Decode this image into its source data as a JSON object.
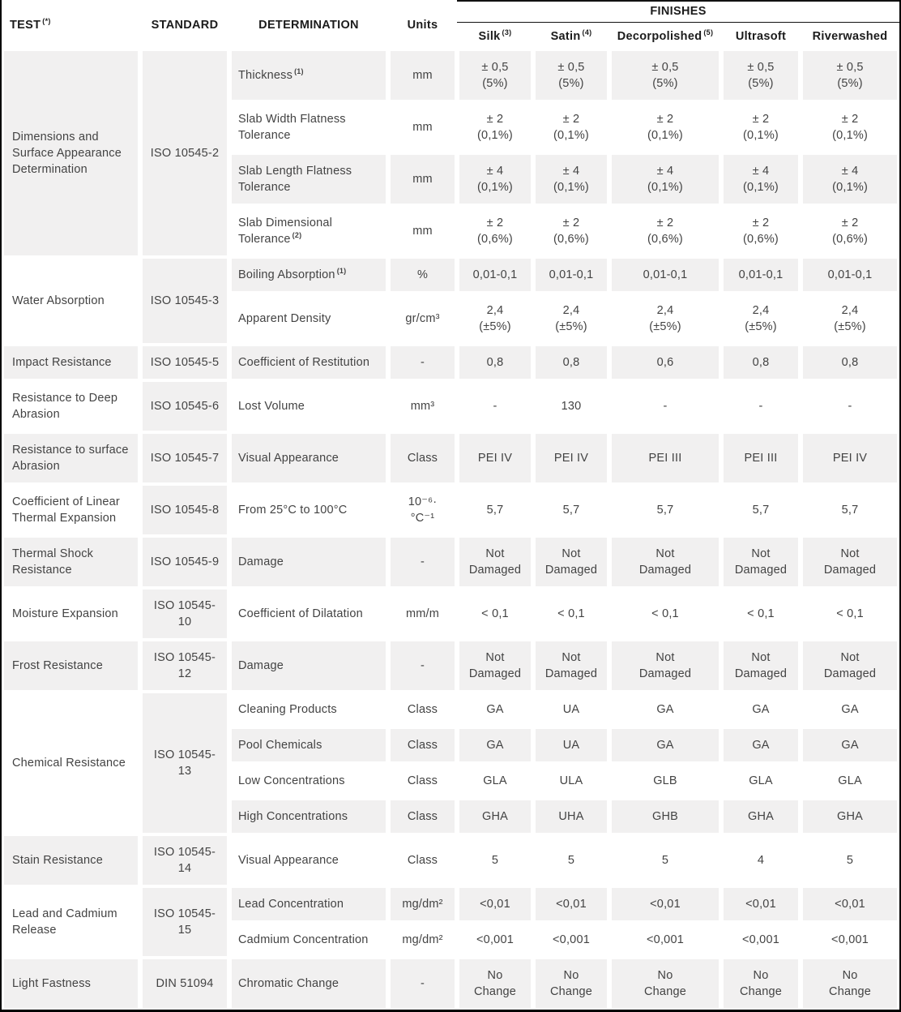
{
  "colors": {
    "cell_gray": "#f1f0f0",
    "body_text": "#434343",
    "header_text": "#1c1c1c",
    "border": "#000000"
  },
  "header": {
    "test": {
      "label": "TEST",
      "sup": "(*)"
    },
    "standard": "STANDARD",
    "determination": "DETERMINATION",
    "units": "Units",
    "finishes": "FINISHES",
    "finish_columns": [
      {
        "label": "Silk",
        "sup": "(3)"
      },
      {
        "label": "Satin",
        "sup": "(4)"
      },
      {
        "label": "Decorpolished",
        "sup": "(5)"
      },
      {
        "label": "Ultrasoft",
        "sup": ""
      },
      {
        "label": "Riverwashed",
        "sup": ""
      }
    ]
  },
  "groups": [
    {
      "test": "Dimensions and Surface Appearance Determination",
      "standard": "ISO 10545-2",
      "rows": [
        {
          "determination": "Thickness",
          "sup": "(1)",
          "units": "mm",
          "values": [
            "± 0,5\n(5%)",
            "± 0,5\n(5%)",
            "± 0,5\n(5%)",
            "± 0,5\n(5%)",
            "± 0,5\n(5%)"
          ]
        },
        {
          "determination": "Slab Width Flatness Tolerance",
          "sup": "",
          "units": "mm",
          "values": [
            "± 2\n(0,1%)",
            "± 2\n(0,1%)",
            "± 2\n(0,1%)",
            "± 2\n(0,1%)",
            "± 2\n(0,1%)"
          ]
        },
        {
          "determination": "Slab Length Flatness Tolerance",
          "sup": "",
          "units": "mm",
          "values": [
            "± 4\n(0,1%)",
            "± 4\n(0,1%)",
            "± 4\n(0,1%)",
            "± 4\n(0,1%)",
            "± 4\n(0,1%)"
          ]
        },
        {
          "determination": "Slab Dimensional Tolerance",
          "sup": "(2)",
          "units": "mm",
          "values": [
            "± 2\n(0,6%)",
            "± 2\n(0,6%)",
            "± 2\n(0,6%)",
            "± 2\n(0,6%)",
            "± 2\n(0,6%)"
          ]
        }
      ]
    },
    {
      "test": "Water Absorption",
      "standard": "ISO 10545-3",
      "rows": [
        {
          "determination": "Boiling Absorption",
          "sup": "(1)",
          "units": "%",
          "values": [
            "0,01-0,1",
            "0,01-0,1",
            "0,01-0,1",
            "0,01-0,1",
            "0,01-0,1"
          ]
        },
        {
          "determination": "Apparent Density",
          "sup": "",
          "units": "gr/cm³",
          "values": [
            "2,4\n(±5%)",
            "2,4\n(±5%)",
            "2,4\n(±5%)",
            "2,4\n(±5%)",
            "2,4\n(±5%)"
          ]
        }
      ]
    },
    {
      "test": "Impact Resistance",
      "standard": "ISO 10545-5",
      "rows": [
        {
          "determination": "Coefficient of Restitution",
          "sup": "",
          "units": "-",
          "values": [
            "0,8",
            "0,8",
            "0,6",
            "0,8",
            "0,8"
          ]
        }
      ]
    },
    {
      "test": "Resistance to Deep Abrasion",
      "standard": "ISO 10545-6",
      "rows": [
        {
          "determination": "Lost Volume",
          "sup": "",
          "units": "mm³",
          "values": [
            "-",
            "130",
            "-",
            "-",
            "-"
          ]
        }
      ]
    },
    {
      "test": "Resistance to surface Abrasion",
      "standard": "ISO 10545-7",
      "rows": [
        {
          "determination": "Visual Appearance",
          "sup": "",
          "units": "Class",
          "values": [
            "PEI IV",
            "PEI IV",
            "PEI III",
            "PEI III",
            "PEI IV"
          ]
        }
      ]
    },
    {
      "test": "Coefficient of Linear Thermal Expansion",
      "standard": "ISO 10545-8",
      "rows": [
        {
          "determination": "From 25°C to 100°C",
          "sup": "",
          "units": "10⁻⁶· °C⁻¹",
          "values": [
            "5,7",
            "5,7",
            "5,7",
            "5,7",
            "5,7"
          ]
        }
      ]
    },
    {
      "test": "Thermal Shock Resistance",
      "standard": "ISO 10545-9",
      "rows": [
        {
          "determination": "Damage",
          "sup": "",
          "units": "-",
          "values": [
            "Not\nDamaged",
            "Not\nDamaged",
            "Not\nDamaged",
            "Not\nDamaged",
            "Not\nDamaged"
          ]
        }
      ]
    },
    {
      "test": "Moisture Expansion",
      "standard": "ISO 10545-10",
      "rows": [
        {
          "determination": "Coefficient of Dilatation",
          "sup": "",
          "units": "mm/m",
          "values": [
            "< 0,1",
            "< 0,1",
            "< 0,1",
            "< 0,1",
            "< 0,1"
          ]
        }
      ]
    },
    {
      "test": "Frost Resistance",
      "standard": "ISO 10545-12",
      "rows": [
        {
          "determination": "Damage",
          "sup": "",
          "units": "-",
          "values": [
            "Not\nDamaged",
            "Not\nDamaged",
            "Not\nDamaged",
            "Not\nDamaged",
            "Not\nDamaged"
          ]
        }
      ]
    },
    {
      "test": "Chemical Resistance",
      "standard": "ISO 10545-13",
      "rows": [
        {
          "determination": "Cleaning Products",
          "sup": "",
          "units": "Class",
          "values": [
            "GA",
            "UA",
            "GA",
            "GA",
            "GA"
          ]
        },
        {
          "determination": "Pool Chemicals",
          "sup": "",
          "units": "Class",
          "values": [
            "GA",
            "UA",
            "GA",
            "GA",
            "GA"
          ]
        },
        {
          "determination": "Low Concentrations",
          "sup": "",
          "units": "Class",
          "values": [
            "GLA",
            "ULA",
            "GLB",
            "GLA",
            "GLA"
          ]
        },
        {
          "determination": "High Concentrations",
          "sup": "",
          "units": "Class",
          "values": [
            "GHA",
            "UHA",
            "GHB",
            "GHA",
            "GHA"
          ]
        }
      ]
    },
    {
      "test": "Stain Resistance",
      "standard": "ISO 10545-14",
      "rows": [
        {
          "determination": "Visual Appearance",
          "sup": "",
          "units": "Class",
          "values": [
            "5",
            "5",
            "5",
            "4",
            "5"
          ]
        }
      ]
    },
    {
      "test": "Lead and Cadmium Release",
      "standard": "ISO 10545-15",
      "rows": [
        {
          "determination": "Lead Concentration",
          "sup": "",
          "units": "mg/dm²",
          "values": [
            "<0,01",
            "<0,01",
            "<0,01",
            "<0,01",
            "<0,01"
          ]
        },
        {
          "determination": "Cadmium Concentration",
          "sup": "",
          "units": "mg/dm²",
          "values": [
            "<0,001",
            "<0,001",
            "<0,001",
            "<0,001",
            "<0,001"
          ]
        }
      ]
    },
    {
      "test": "Light Fastness",
      "standard": "DIN 51094",
      "rows": [
        {
          "determination": "Chromatic Change",
          "sup": "",
          "units": "-",
          "values": [
            "No\nChange",
            "No\nChange",
            "No\nChange",
            "No\nChange",
            "No\nChange"
          ]
        }
      ]
    }
  ]
}
